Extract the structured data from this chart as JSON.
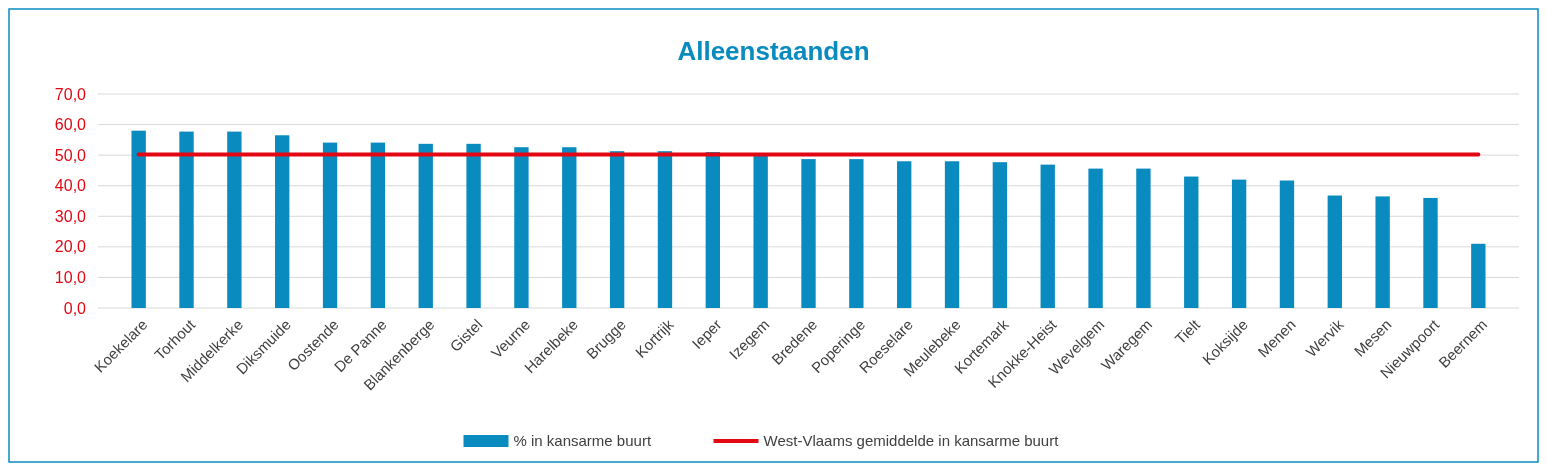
{
  "chart_data": {
    "type": "bar",
    "title": "Alleenstaanden",
    "categories": [
      "Koekelare",
      "Torhout",
      "Middelkerke",
      "Diksmuide",
      "Oostende",
      "De Panne",
      "Blankenberge",
      "Gistel",
      "Veurne",
      "Harelbeke",
      "Brugge",
      "Kortrijk",
      "Ieper",
      "Izegem",
      "Bredene",
      "Poperinge",
      "Roeselare",
      "Meulebeke",
      "Kortemark",
      "Knokke-Heist",
      "Wevelgem",
      "Waregem",
      "Tielt",
      "Koksijde",
      "Menen",
      "Wervik",
      "Mesen",
      "Nieuwpoort",
      "Beernem"
    ],
    "series": [
      {
        "name": "% in kansarme buurt",
        "color": "#0a8bc0",
        "values": [
          58.0,
          57.7,
          57.7,
          56.5,
          54.1,
          54.1,
          53.7,
          53.7,
          52.6,
          52.6,
          51.3,
          51.3,
          51.0,
          50.5,
          48.7,
          48.7,
          48.0,
          48.0,
          47.7,
          46.9,
          45.6,
          45.6,
          43.0,
          42.0,
          41.7,
          36.8,
          36.5,
          36.0,
          21.0
        ]
      },
      {
        "name": "West-Vlaams gemiddelde in kansarme buurt",
        "type": "line",
        "color": "#e30613",
        "marker": "none",
        "values": [
          50.2,
          50.2,
          50.2,
          50.2,
          50.2,
          50.2,
          50.2,
          50.2,
          50.2,
          50.2,
          50.2,
          50.2,
          50.2,
          50.2,
          50.2,
          50.2,
          50.2,
          50.2,
          50.2,
          50.2,
          50.2,
          50.2,
          50.2,
          50.2,
          50.2,
          50.2,
          50.2,
          50.2,
          50.2
        ]
      }
    ],
    "ylim": [
      0,
      70
    ],
    "yticks": [
      {
        "value": 0,
        "label": "0,0"
      },
      {
        "value": 10,
        "label": "10,0"
      },
      {
        "value": 20,
        "label": "20,0"
      },
      {
        "value": 30,
        "label": "30,0"
      },
      {
        "value": 40,
        "label": "40,0"
      },
      {
        "value": 50,
        "label": "50,0"
      },
      {
        "value": 60,
        "label": "60,0"
      },
      {
        "value": 70,
        "label": "70,0"
      }
    ],
    "grid": "y",
    "legend": "bottom"
  }
}
